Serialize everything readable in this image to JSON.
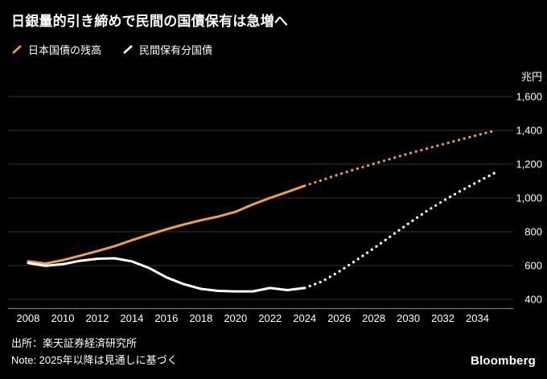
{
  "header": {
    "title": "日銀量的引き締めで民間の国債保有は急増へ"
  },
  "legend": {
    "items": [
      {
        "label": "日本国債の残高",
        "color": "#F2A03C"
      },
      {
        "label": "民間保有分国債",
        "color": "#FFFFFF"
      }
    ]
  },
  "footer": {
    "source": "出所：楽天証券経済研究所",
    "note": "Note: 2025年以降は見通しに基づく",
    "brand": "Bloomberg"
  },
  "colors": {
    "background": "#000000",
    "grid": "#333333",
    "axis": "#777777",
    "text": "#FFFFFF",
    "accent_orange": "#F2A03C"
  },
  "chart_data": {
    "type": "line",
    "title": "日銀量的引き締めで民間の国債保有は急増へ",
    "y_unit_label": "兆円",
    "ylim": [
      400,
      1600
    ],
    "y_ticks": [
      400,
      600,
      800,
      1000,
      1200,
      1400,
      1600
    ],
    "y_tick_labels": [
      "400",
      "600",
      "800",
      "1,000",
      "1,200",
      "1,400",
      "1,600"
    ],
    "x_ticks": [
      2008,
      2010,
      2012,
      2014,
      2016,
      2018,
      2020,
      2022,
      2024,
      2026,
      2028,
      2030,
      2032,
      2034
    ],
    "xlim": [
      2008,
      2035
    ],
    "grid": true,
    "legend_position": "top-left",
    "forecast_start_year": 2024,
    "forecast_note": "2025年以降は見通しに基づく",
    "x": [
      2008,
      2009,
      2010,
      2011,
      2012,
      2013,
      2014,
      2015,
      2016,
      2017,
      2018,
      2019,
      2020,
      2021,
      2022,
      2023,
      2024,
      2025,
      2026,
      2027,
      2028,
      2029,
      2030,
      2031,
      2032,
      2033,
      2034,
      2035
    ],
    "series": [
      {
        "name": "日本国債の残高",
        "color": "#F2A03C",
        "style_after_forecast_start": "dotted",
        "values": [
          625,
          612,
          632,
          658,
          685,
          715,
          750,
          783,
          815,
          843,
          868,
          890,
          918,
          962,
          1000,
          1035,
          1072,
          1105,
          1140,
          1172,
          1202,
          1232,
          1262,
          1290,
          1318,
          1345,
          1372,
          1398
        ]
      },
      {
        "name": "民間保有分国債",
        "color": "#FFFFFF",
        "style_after_forecast_start": "dotted",
        "values": [
          615,
          598,
          608,
          628,
          640,
          643,
          625,
          585,
          530,
          490,
          462,
          450,
          447,
          447,
          467,
          455,
          467,
          505,
          565,
          632,
          702,
          775,
          848,
          918,
          982,
          1040,
          1095,
          1148
        ]
      }
    ]
  }
}
